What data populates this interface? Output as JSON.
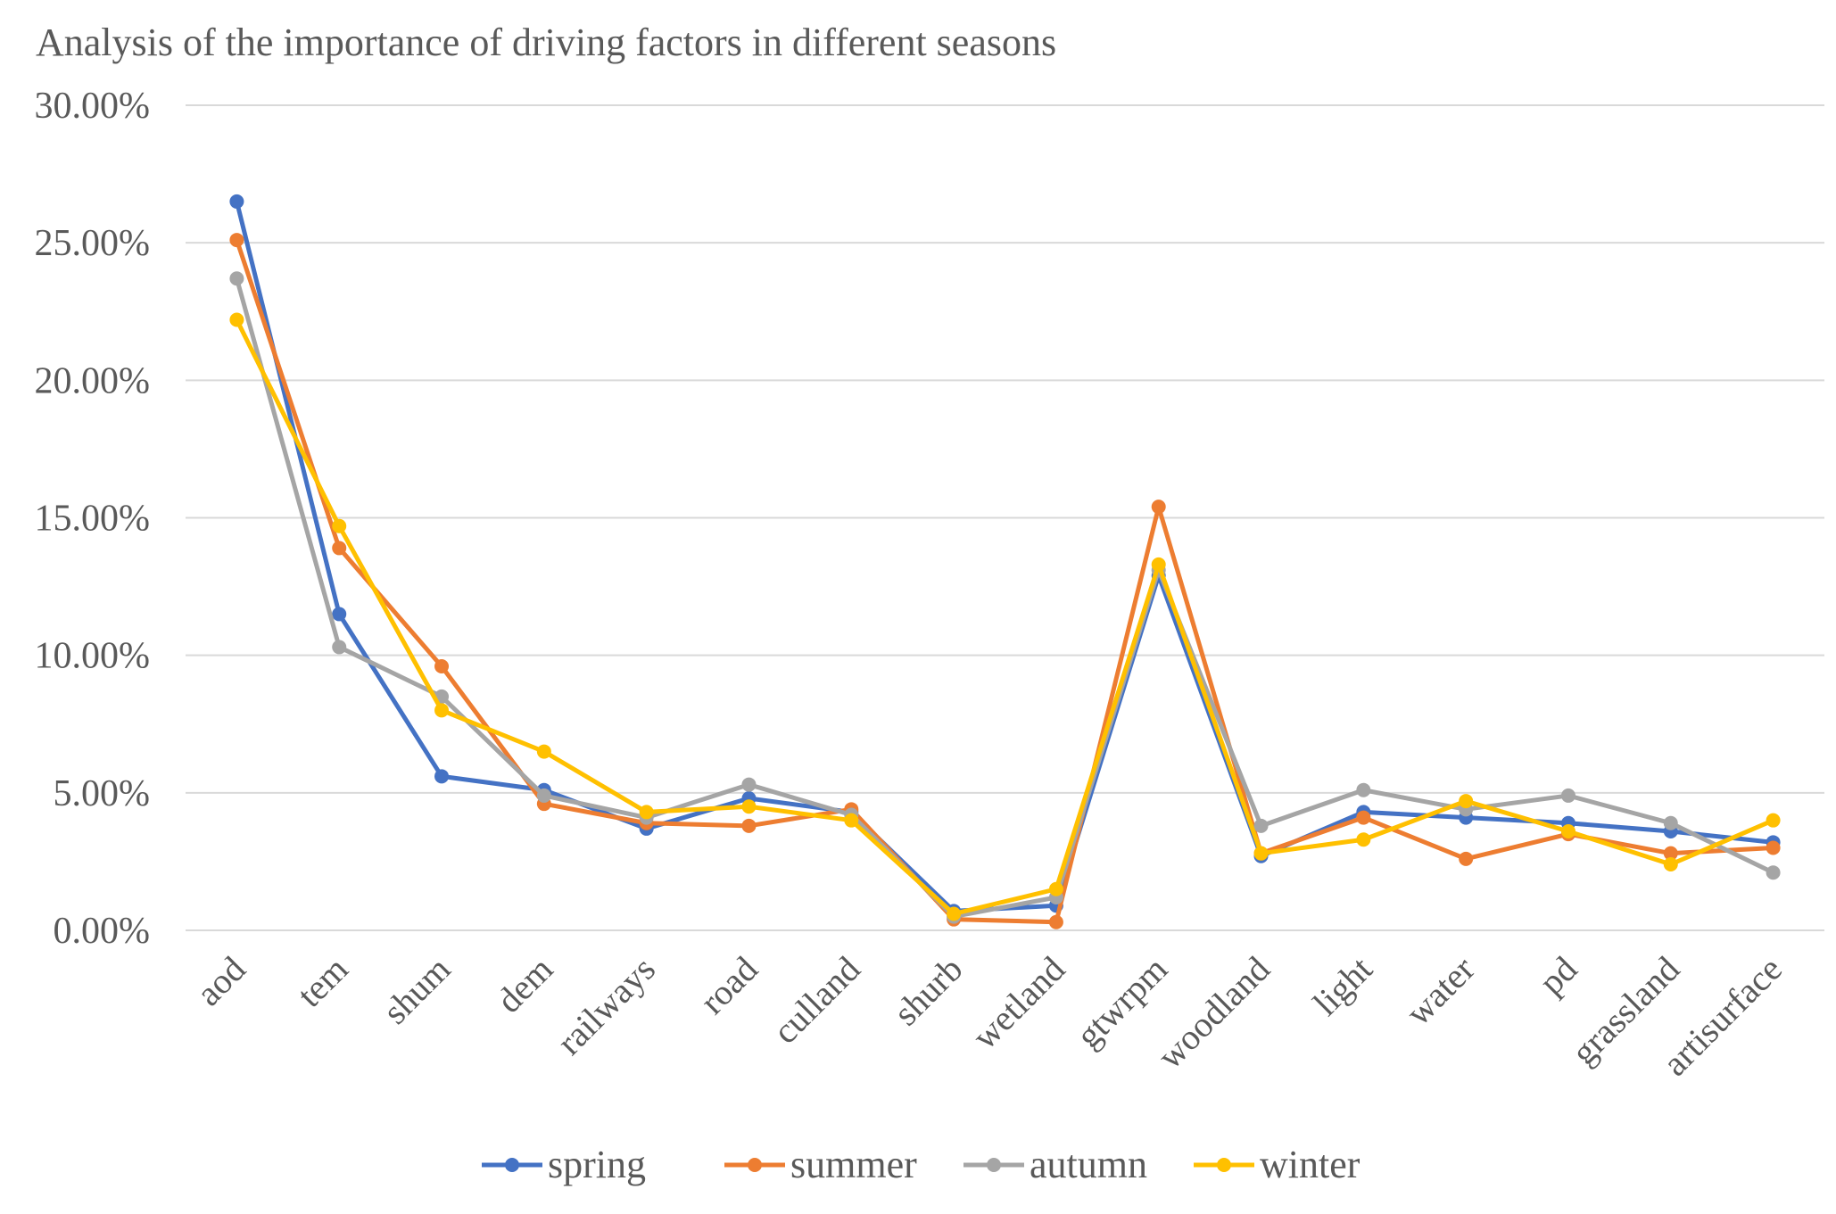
{
  "chart_data": {
    "type": "line",
    "title": "Analysis of the importance of driving factors in different seasons",
    "xlabel": "",
    "ylabel": "",
    "ylim": [
      0,
      0.3
    ],
    "yticks": [
      0,
      0.05,
      0.1,
      0.15,
      0.2,
      0.25,
      0.3
    ],
    "ytick_labels": [
      "0.00%",
      "5.00%",
      "10.00%",
      "15.00%",
      "20.00%",
      "25.00%",
      "30.00%"
    ],
    "grid": true,
    "legend_position": "bottom-center",
    "categories": [
      "aod",
      "tem",
      "shum",
      "dem",
      "railways",
      "road",
      "culland",
      "shurb",
      "wetland",
      "gtwrpm",
      "woodland",
      "light",
      "water",
      "pd",
      "grassland",
      "artisurface"
    ],
    "series": [
      {
        "name": "spring",
        "color": "#4472C4",
        "values": [
          0.265,
          0.115,
          0.056,
          0.051,
          0.037,
          0.048,
          0.043,
          0.007,
          0.009,
          0.129,
          0.027,
          0.043,
          0.041,
          0.039,
          0.036,
          0.032
        ]
      },
      {
        "name": "summer",
        "color": "#ED7D31",
        "values": [
          0.251,
          0.139,
          0.096,
          0.046,
          0.039,
          0.038,
          0.044,
          0.004,
          0.003,
          0.154,
          0.028,
          0.041,
          0.026,
          0.035,
          0.028,
          0.03
        ]
      },
      {
        "name": "autumn",
        "color": "#A5A5A5",
        "values": [
          0.237,
          0.103,
          0.085,
          0.049,
          0.041,
          0.053,
          0.042,
          0.005,
          0.012,
          0.131,
          0.038,
          0.051,
          0.044,
          0.049,
          0.039,
          0.021
        ]
      },
      {
        "name": "winter",
        "color": "#FFC000",
        "values": [
          0.222,
          0.147,
          0.08,
          0.065,
          0.043,
          0.045,
          0.04,
          0.006,
          0.015,
          0.133,
          0.028,
          0.033,
          0.047,
          0.036,
          0.024,
          0.04
        ]
      }
    ]
  }
}
